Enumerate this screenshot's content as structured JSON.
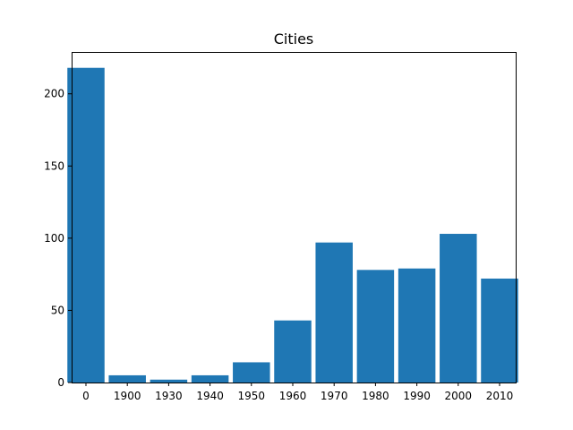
{
  "chart_data": {
    "type": "bar",
    "title": "Cities",
    "xlabel": "",
    "ylabel": "",
    "categories": [
      "0",
      "1900",
      "1930",
      "1940",
      "1950",
      "1960",
      "1970",
      "1980",
      "1990",
      "2000",
      "2010"
    ],
    "values": [
      218,
      5,
      2,
      5,
      14,
      43,
      97,
      78,
      79,
      103,
      72
    ],
    "ylim": [
      0,
      229
    ],
    "yticks": [
      0,
      50,
      100,
      150,
      200
    ],
    "grid": false,
    "bar_color": "#1f77b4"
  }
}
